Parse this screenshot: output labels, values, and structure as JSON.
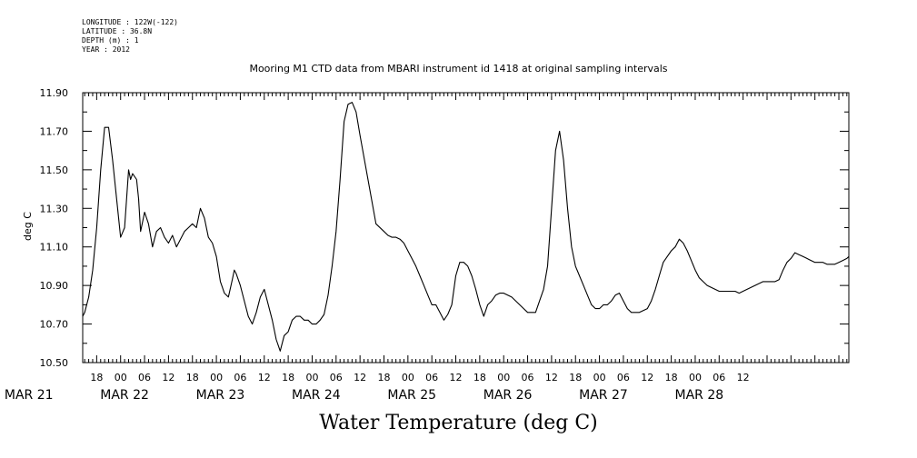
{
  "meta": {
    "longitude": "LONGITUDE : 122W(-122)",
    "latitude": "LATITUDE : 36.8N",
    "depth": "DEPTH (m) : 1",
    "year": "YEAR : 2012"
  },
  "chart_data": {
    "type": "line",
    "title": "Mooring M1 CTD data from MBARI instrument id 1418 at original sampling intervals",
    "xlabel": "Water Temperature (deg C)",
    "ylabel": "deg C",
    "ylim": [
      10.5,
      11.9
    ],
    "yticks": [
      "10.50",
      "10.70",
      "10.90",
      "11.10",
      "11.30",
      "11.50",
      "11.70",
      "11.90"
    ],
    "xlim_hours": [
      14.5,
      206.5
    ],
    "xtick_labels": [
      "18",
      "00",
      "06",
      "12",
      "18",
      "00",
      "06",
      "12",
      "18",
      "00",
      "06",
      "12",
      "18",
      "00",
      "06",
      "12",
      "18",
      "00",
      "06",
      "12",
      "18",
      "00",
      "06",
      "12",
      "18",
      "00",
      "06",
      "12"
    ],
    "date_labels": [
      "MAR 21",
      "MAR 22",
      "MAR 23",
      "MAR 24",
      "MAR 25",
      "MAR 26",
      "MAR 27",
      "MAR 28"
    ],
    "grid": false,
    "series": [
      {
        "x": [
          14.5,
          15,
          16,
          17,
          18,
          19,
          20,
          21,
          22,
          23,
          24,
          25,
          26,
          26.5,
          27,
          28,
          28.5,
          29,
          30,
          31,
          32,
          33,
          34,
          35,
          36,
          37,
          38,
          39,
          40,
          41,
          42,
          43,
          44,
          45,
          46,
          47,
          48,
          49,
          50,
          51,
          52,
          52.5,
          53,
          54,
          55,
          56,
          57,
          58,
          59,
          60,
          61,
          62,
          63,
          64,
          65,
          66,
          67,
          68,
          69,
          70,
          71,
          72,
          73,
          74,
          75,
          76,
          77,
          78,
          79,
          80,
          81,
          82,
          83,
          84,
          86,
          88,
          90,
          91,
          92,
          93,
          94,
          95,
          96,
          97,
          98,
          99,
          100,
          101,
          102,
          103,
          104,
          105,
          106,
          107,
          108,
          109,
          110,
          111,
          112,
          113,
          114,
          115,
          116,
          117,
          118,
          119,
          120,
          121,
          122,
          123,
          124,
          125,
          126,
          127,
          128,
          129,
          130,
          131,
          132,
          133,
          134,
          135,
          136,
          137,
          138,
          139,
          140,
          141,
          142,
          143,
          144,
          145,
          146,
          147,
          148,
          149,
          150,
          151,
          152,
          153,
          154,
          156,
          157,
          158,
          159,
          160,
          161,
          162,
          163,
          164,
          165,
          166,
          167,
          168,
          169,
          170,
          171,
          172,
          173,
          174,
          175,
          176,
          177,
          178,
          179,
          180,
          181,
          182,
          183,
          184,
          185,
          186,
          187,
          188,
          189,
          190,
          191,
          192,
          193,
          194,
          195,
          196,
          197,
          198,
          199,
          200,
          201,
          202,
          203,
          204,
          205,
          206,
          206.5
        ],
        "values": [
          10.74,
          10.76,
          10.84,
          10.98,
          11.2,
          11.5,
          11.72,
          11.72,
          11.55,
          11.35,
          11.15,
          11.2,
          11.5,
          11.45,
          11.48,
          11.45,
          11.35,
          11.18,
          11.28,
          11.22,
          11.1,
          11.18,
          11.2,
          11.15,
          11.12,
          11.16,
          11.1,
          11.14,
          11.18,
          11.2,
          11.22,
          11.2,
          11.3,
          11.25,
          11.15,
          11.12,
          11.05,
          10.92,
          10.86,
          10.84,
          10.93,
          10.98,
          10.96,
          10.9,
          10.82,
          10.74,
          10.7,
          10.76,
          10.84,
          10.88,
          10.8,
          10.72,
          10.62,
          10.56,
          10.64,
          10.66,
          10.72,
          10.74,
          10.74,
          10.72,
          10.72,
          10.7,
          10.7,
          10.72,
          10.75,
          10.85,
          11.0,
          11.18,
          11.45,
          11.75,
          11.84,
          11.85,
          11.8,
          11.68,
          11.45,
          11.22,
          11.18,
          11.16,
          11.15,
          11.15,
          11.14,
          11.12,
          11.08,
          11.04,
          11.0,
          10.95,
          10.9,
          10.85,
          10.8,
          10.8,
          10.76,
          10.72,
          10.75,
          10.8,
          10.95,
          11.02,
          11.02,
          11.0,
          10.95,
          10.88,
          10.8,
          10.74,
          10.8,
          10.82,
          10.85,
          10.86,
          10.86,
          10.85,
          10.84,
          10.82,
          10.8,
          10.78,
          10.76,
          10.76,
          10.76,
          10.82,
          10.88,
          11.0,
          11.3,
          11.6,
          11.7,
          11.55,
          11.3,
          11.1,
          11.0,
          10.95,
          10.9,
          10.85,
          10.8,
          10.78,
          10.78,
          10.8,
          10.8,
          10.82,
          10.85,
          10.86,
          10.82,
          10.78,
          10.76,
          10.76,
          10.76,
          10.78,
          10.82,
          10.88,
          10.95,
          11.02,
          11.05,
          11.08,
          11.1,
          11.14,
          11.12,
          11.08,
          11.03,
          10.98,
          10.94,
          10.92,
          10.9,
          10.89,
          10.88,
          10.87,
          10.87,
          10.87,
          10.87,
          10.87,
          10.86,
          10.87,
          10.88,
          10.89,
          10.9,
          10.91,
          10.92,
          10.92,
          10.92,
          10.92,
          10.93,
          10.98,
          11.02,
          11.04,
          11.07,
          11.06,
          11.05,
          11.04,
          11.03,
          11.02,
          11.02,
          11.02,
          11.01,
          11.01,
          11.01,
          11.02,
          11.03,
          11.04,
          11.05
        ]
      }
    ]
  }
}
